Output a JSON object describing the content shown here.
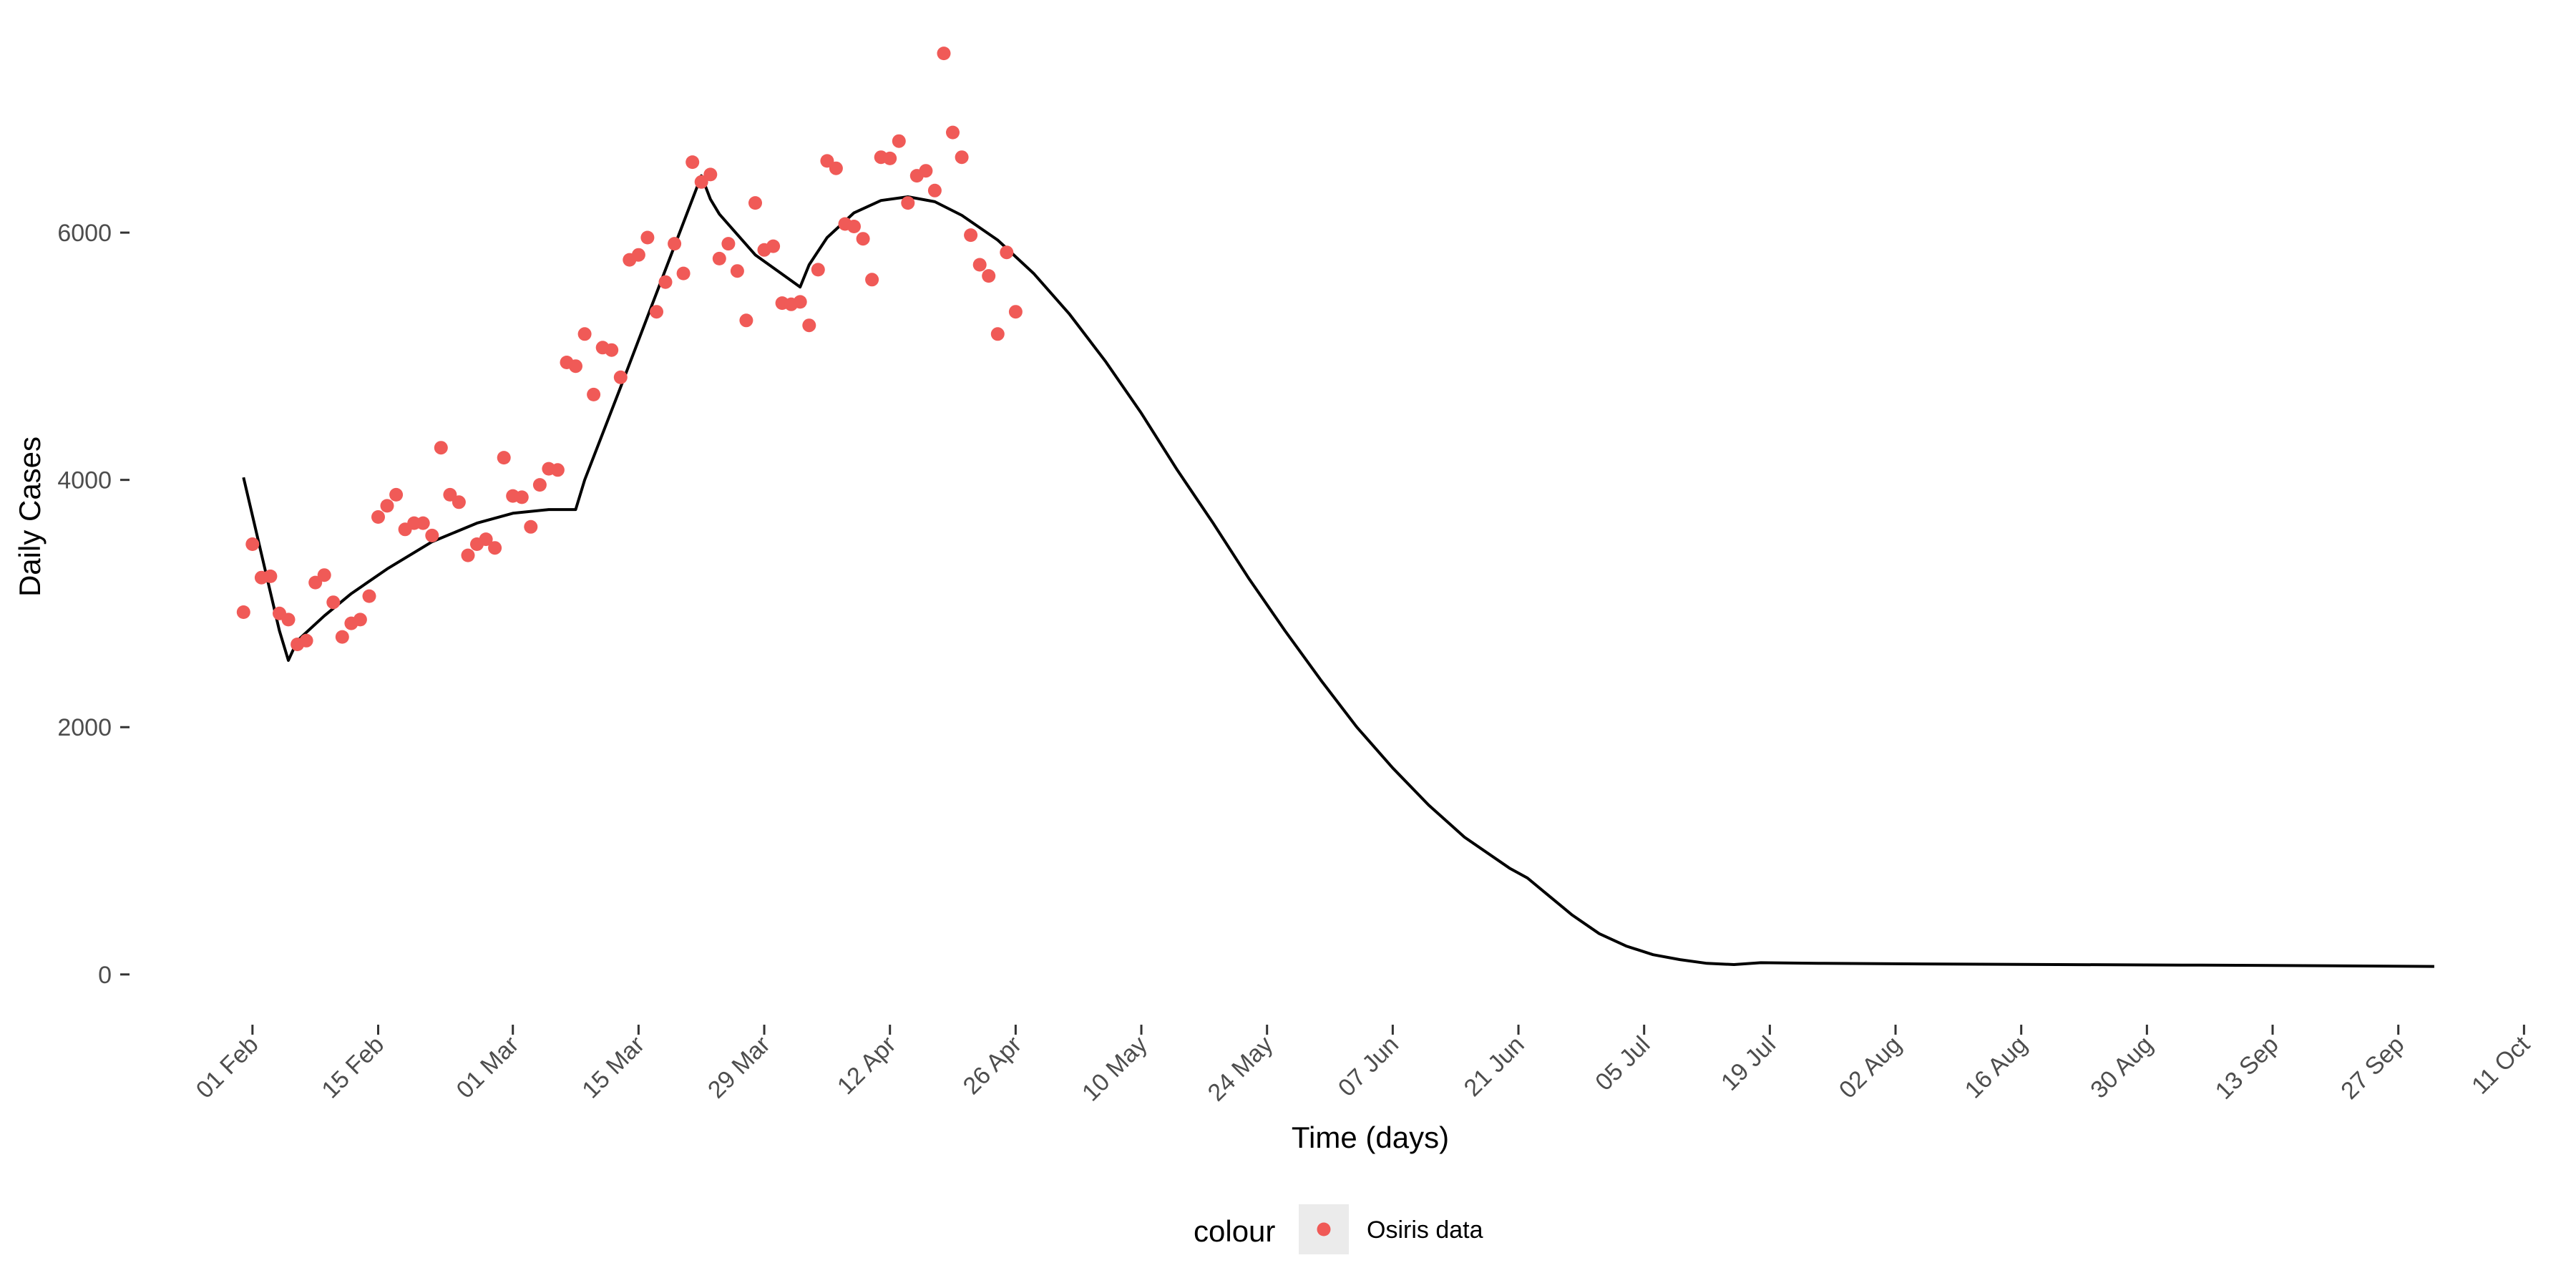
{
  "chart_data": {
    "type": "line",
    "xlabel": "Time (days)",
    "ylabel": "Daily Cases",
    "xlim": [
      "2020-01-25",
      "2020-10-14"
    ],
    "ylim": [
      -250,
      7650
    ],
    "y_ticks": [
      0,
      2000,
      4000,
      6000
    ],
    "y_tick_labels": [
      "0",
      "2000",
      "4000",
      "6000"
    ],
    "x_ticks": [
      "2020-02-01",
      "2020-02-15",
      "2020-03-01",
      "2020-03-15",
      "2020-03-29",
      "2020-04-12",
      "2020-04-26",
      "2020-05-10",
      "2020-05-24",
      "2020-06-07",
      "2020-06-21",
      "2020-07-05",
      "2020-07-19",
      "2020-08-02",
      "2020-08-16",
      "2020-08-30",
      "2020-09-13",
      "2020-09-27",
      "2020-10-11"
    ],
    "x_tick_labels": [
      "01 Feb",
      "15 Feb",
      "01 Mar",
      "15 Mar",
      "29 Mar",
      "12 Apr",
      "26 Apr",
      "10 May",
      "24 May",
      "07 Jun",
      "21 Jun",
      "05 Jul",
      "19 Jul",
      "02 Aug",
      "16 Aug",
      "30 Aug",
      "13 Sep",
      "27 Sep",
      "11 Oct"
    ],
    "grid": false,
    "legend": {
      "title": "colour",
      "position": "bottom",
      "entries": [
        "Osiris data"
      ]
    },
    "colors": {
      "points": "#f05a57",
      "line": "#000000",
      "axis": "#333333",
      "legend_key_bg": "#ebebeb"
    },
    "series": [
      {
        "name": "Osiris data",
        "kind": "scatter",
        "x": [
          "2020-01-31",
          "2020-02-01",
          "2020-02-02",
          "2020-02-03",
          "2020-02-04",
          "2020-02-05",
          "2020-02-06",
          "2020-02-07",
          "2020-02-08",
          "2020-02-09",
          "2020-02-10",
          "2020-02-11",
          "2020-02-12",
          "2020-02-13",
          "2020-02-14",
          "2020-02-15",
          "2020-02-16",
          "2020-02-17",
          "2020-02-18",
          "2020-02-19",
          "2020-02-20",
          "2020-02-21",
          "2020-02-22",
          "2020-02-23",
          "2020-02-24",
          "2020-02-25",
          "2020-02-26",
          "2020-02-27",
          "2020-02-28",
          "2020-02-29",
          "2020-03-01",
          "2020-03-02",
          "2020-03-03",
          "2020-03-04",
          "2020-03-05",
          "2020-03-06",
          "2020-03-07",
          "2020-03-08",
          "2020-03-09",
          "2020-03-10",
          "2020-03-11",
          "2020-03-12",
          "2020-03-13",
          "2020-03-14",
          "2020-03-15",
          "2020-03-16",
          "2020-03-17",
          "2020-03-18",
          "2020-03-19",
          "2020-03-20",
          "2020-03-21",
          "2020-03-22",
          "2020-03-23",
          "2020-03-24",
          "2020-03-25",
          "2020-03-26",
          "2020-03-27",
          "2020-03-28",
          "2020-03-29",
          "2020-03-30",
          "2020-03-31",
          "2020-04-01",
          "2020-04-02",
          "2020-04-03",
          "2020-04-04",
          "2020-04-05",
          "2020-04-06",
          "2020-04-07",
          "2020-04-08",
          "2020-04-09",
          "2020-04-10",
          "2020-04-11",
          "2020-04-12",
          "2020-04-13",
          "2020-04-14",
          "2020-04-15",
          "2020-04-16",
          "2020-04-17",
          "2020-04-18",
          "2020-04-19",
          "2020-04-20",
          "2020-04-21",
          "2020-04-22",
          "2020-04-23",
          "2020-04-24",
          "2020-04-25",
          "2020-04-26",
          "2020-04-27"
        ],
        "y": [
          2930,
          3480,
          3210,
          3220,
          2920,
          2870,
          2670,
          2700,
          3170,
          3230,
          3010,
          2730,
          2840,
          2870,
          3060,
          3700,
          3790,
          3880,
          3600,
          3650,
          3650,
          3550,
          4260,
          3880,
          3820,
          3390,
          3480,
          3520,
          3450,
          4180,
          3870,
          3860,
          3620,
          3960,
          4090,
          4080,
          4950,
          4920,
          5180,
          4690,
          5070,
          5050,
          4830,
          5780,
          5820,
          5960,
          5360,
          5600,
          5910,
          5670,
          6570,
          6410,
          6470,
          5790,
          5910,
          5690,
          5290,
          6240,
          5860,
          5890,
          5430,
          5420,
          5440,
          5250,
          5700,
          6580,
          6520,
          6070,
          6050,
          5950,
          5620,
          6610,
          6600,
          6740,
          6240,
          6460,
          6500,
          6340,
          7450,
          6810,
          6610,
          5980,
          5740,
          5650,
          5180,
          5840,
          5360,
          null
        ]
      },
      {
        "name": "",
        "kind": "line",
        "x": [
          "2020-01-31",
          "2020-02-04",
          "2020-02-05",
          "2020-02-06",
          "2020-02-09",
          "2020-02-12",
          "2020-02-16",
          "2020-02-21",
          "2020-02-26",
          "2020-03-01",
          "2020-03-05",
          "2020-03-08",
          "2020-03-09",
          "2020-03-13",
          "2020-03-18",
          "2020-03-22",
          "2020-03-23",
          "2020-03-24",
          "2020-03-28",
          "2020-04-02",
          "2020-04-03",
          "2020-04-05",
          "2020-04-08",
          "2020-04-11",
          "2020-04-14",
          "2020-04-17",
          "2020-04-20",
          "2020-04-24",
          "2020-04-28",
          "2020-05-02",
          "2020-05-06",
          "2020-05-10",
          "2020-05-14",
          "2020-05-18",
          "2020-05-22",
          "2020-05-26",
          "2020-05-30",
          "2020-06-03",
          "2020-06-07",
          "2020-06-11",
          "2020-06-15",
          "2020-06-20",
          "2020-06-22",
          "2020-06-24",
          "2020-06-27",
          "2020-06-30",
          "2020-07-03",
          "2020-07-06",
          "2020-07-09",
          "2020-07-12",
          "2020-07-15",
          "2020-07-17",
          "2020-07-18",
          "2020-07-25",
          "2020-08-05",
          "2020-08-20",
          "2020-09-05",
          "2020-09-20",
          "2020-10-01"
        ],
        "y": [
          4020,
          2780,
          2540,
          2700,
          2900,
          3080,
          3280,
          3500,
          3650,
          3730,
          3760,
          3760,
          4000,
          4750,
          5700,
          6460,
          6270,
          6150,
          5820,
          5560,
          5740,
          5960,
          6160,
          6260,
          6290,
          6250,
          6140,
          5940,
          5670,
          5340,
          4960,
          4540,
          4080,
          3650,
          3200,
          2780,
          2380,
          2000,
          1670,
          1370,
          1110,
          860,
          780,
          660,
          480,
          330,
          230,
          160,
          120,
          90,
          80,
          90,
          95,
          90,
          85,
          80,
          75,
          70,
          65
        ]
      }
    ]
  }
}
